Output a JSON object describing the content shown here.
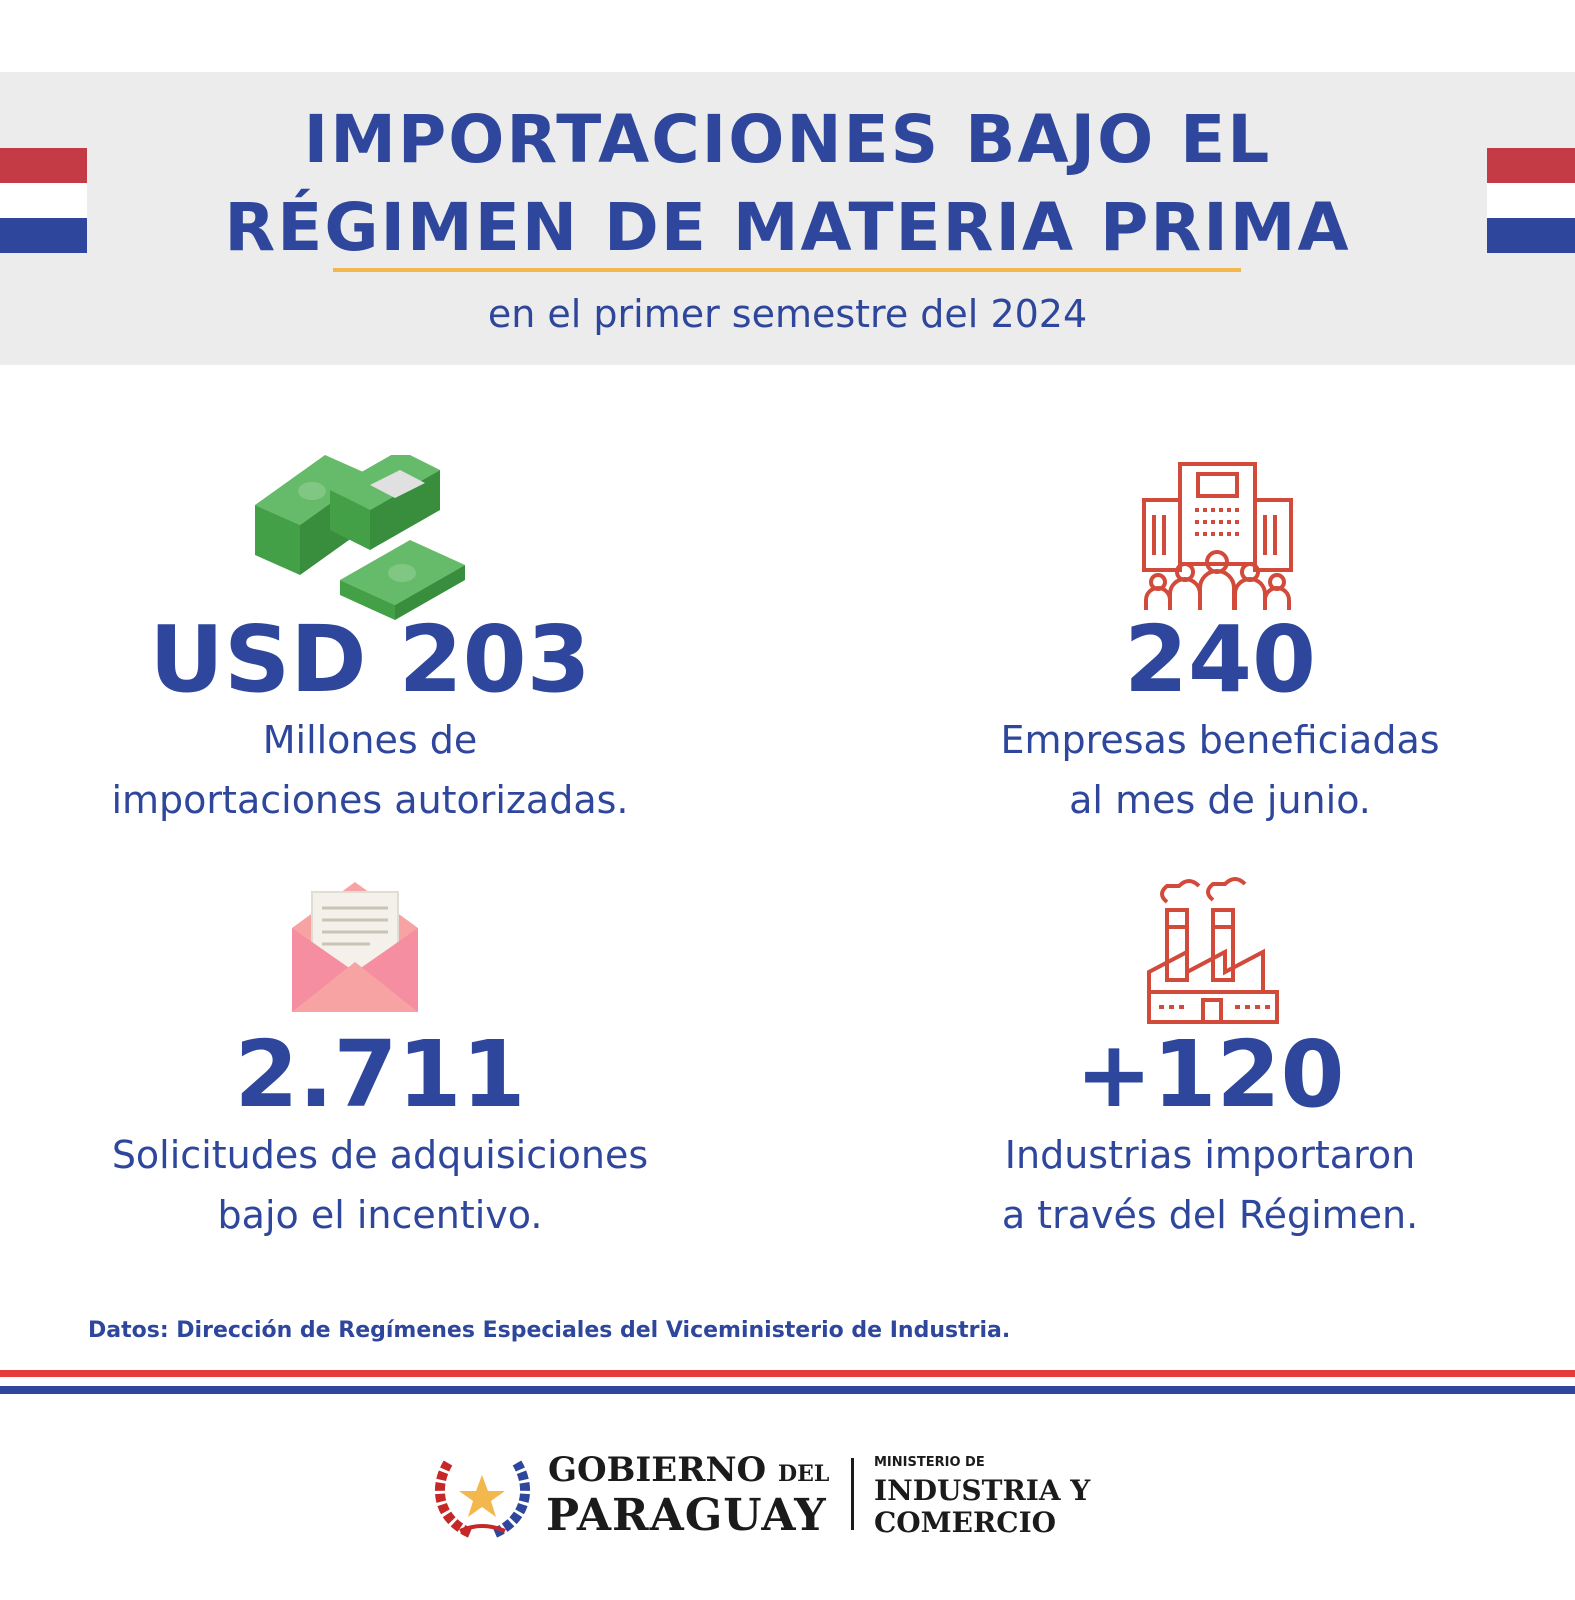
{
  "header": {
    "title_line1": "IMPORTACIONES BAJO EL",
    "title_line2": "RÉGIMEN DE MATERIA PRIMA",
    "subtitle": "en el primer semestre del 2024"
  },
  "stats": [
    {
      "value": "USD 203",
      "desc_line1": "Millones de",
      "desc_line2": "importaciones autorizadas.",
      "icon": "money-stack-icon"
    },
    {
      "value": "240",
      "desc_line1": "Empresas beneficiadas",
      "desc_line2": "al mes de junio.",
      "icon": "company-building-icon"
    },
    {
      "value": "2.711",
      "desc_line1": "Solicitudes de adquisiciones",
      "desc_line2": "bajo el incentivo.",
      "icon": "envelope-letter-icon"
    },
    {
      "value": "+120",
      "desc_line1": "Industrias importaron",
      "desc_line2": "a través del Régimen.",
      "icon": "factory-icon"
    }
  ],
  "source": "Datos: Dirección de Regímenes Especiales del Viceministerio de Industria.",
  "logo": {
    "gob_line1": "GOBIERNO",
    "gob_del": "DEL",
    "gob_line2": "PARAGUAY",
    "min_line1": "MINISTERIO DE",
    "min_line2": "INDUSTRIA Y",
    "min_line3": "COMERCIO"
  },
  "colors": {
    "primary_blue": "#2e479c",
    "flag_red": "#c53b45",
    "accent_gold": "#f2b84d",
    "icon_red": "#d24a3a",
    "money_green": "#4caf50"
  }
}
